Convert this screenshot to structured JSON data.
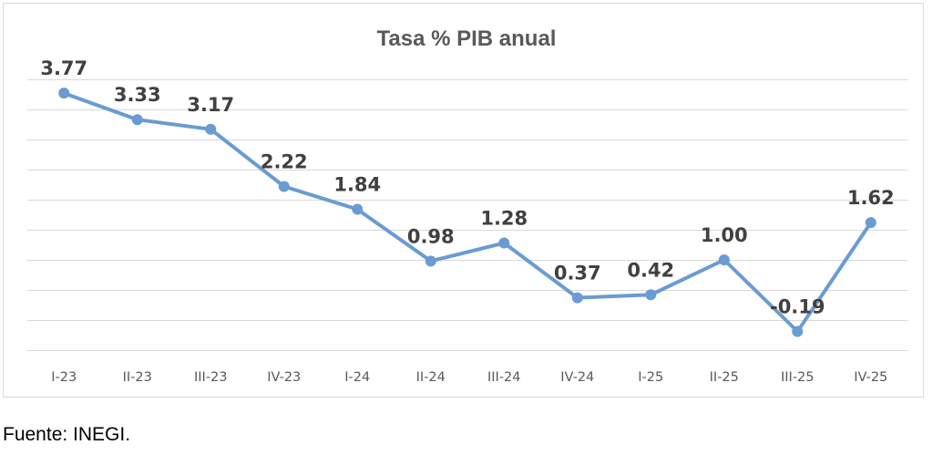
{
  "chart_data": {
    "type": "line",
    "title": "Tasa % PIB anual",
    "categories": [
      "I-23",
      "II-23",
      "III-23",
      "IV-23",
      "I-24",
      "II-24",
      "III-24",
      "IV-24",
      "I-25",
      "II-25",
      "III-25",
      "IV-25"
    ],
    "series": [
      {
        "values": [
          3.77,
          3.33,
          3.17,
          2.22,
          1.84,
          0.98,
          1.28,
          0.37,
          0.42,
          1.0,
          -0.19,
          1.62
        ],
        "labels": [
          "3.77",
          "3.33",
          "3.17",
          "2.22",
          "1.84",
          "0.98",
          "1.28",
          "0.37",
          "0.42",
          "1.00",
          "-0.19",
          "1.62"
        ],
        "color": "#6a9bd2"
      }
    ],
    "xlabel": "",
    "ylabel": "",
    "ylim": [
      -0.5,
      4.0
    ],
    "grid": true,
    "legend": "none"
  },
  "footnote": "Fuente: INEGI."
}
